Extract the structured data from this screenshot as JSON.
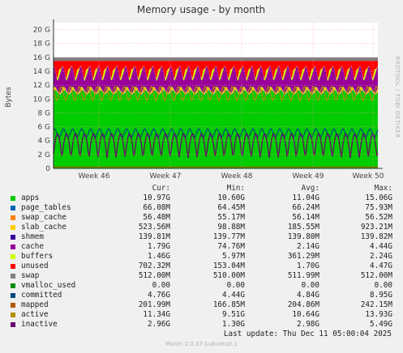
{
  "chart_data": {
    "type": "area",
    "title": "Memory usage - by month",
    "ylabel": "Bytes",
    "side_label": "RRDTOOL / TOBI OETIKER",
    "ylim": [
      0,
      21
    ],
    "y_ticks": [
      {
        "value": 0,
        "label": "0"
      },
      {
        "value": 2,
        "label": "2 G"
      },
      {
        "value": 4,
        "label": "4 G"
      },
      {
        "value": 6,
        "label": "6 G"
      },
      {
        "value": 8,
        "label": "8 G"
      },
      {
        "value": 10,
        "label": "10 G"
      },
      {
        "value": 12,
        "label": "12 G"
      },
      {
        "value": 14,
        "label": "14 G"
      },
      {
        "value": 16,
        "label": "16 G"
      },
      {
        "value": 18,
        "label": "18 G"
      },
      {
        "value": 20,
        "label": "20 G"
      }
    ],
    "x_ticks": [
      {
        "value": 0.14,
        "label": "Week 46"
      },
      {
        "value": 0.36,
        "label": "Week 47"
      },
      {
        "value": 0.58,
        "label": "Week 48"
      },
      {
        "value": 0.8,
        "label": "Week 49"
      },
      {
        "value": 0.985,
        "label": "Week 50"
      }
    ],
    "total_memory": 16,
    "periods": 36,
    "grid": true,
    "legend_placement": "bottom",
    "columns": [
      "Cur:",
      "Min:",
      "Avg:",
      "Max:"
    ],
    "series": [
      {
        "name": "apps",
        "color": "#00cc00",
        "cur": "10.97G",
        "min": "10.60G",
        "avg": "11.04G",
        "max": "15.06G",
        "base": 10.6,
        "amp": 0.6
      },
      {
        "name": "page_tables",
        "color": "#0066b3",
        "cur": "66.08M",
        "min": "64.45M",
        "avg": "66.24M",
        "max": "75.93M",
        "base": 0.066,
        "amp": 0.0
      },
      {
        "name": "swap_cache",
        "color": "#ff8000",
        "cur": "56.48M",
        "min": "55.17M",
        "avg": "56.14M",
        "max": "56.52M",
        "base": 0.056,
        "amp": 0.0
      },
      {
        "name": "slab_cache",
        "color": "#ffcc00",
        "cur": "523.56M",
        "min": "98.88M",
        "avg": "185.55M",
        "max": "923.21M",
        "base": 0.15,
        "amp": 0.4
      },
      {
        "name": "shmem",
        "color": "#330099",
        "cur": "139.81M",
        "min": "139.77M",
        "avg": "139.80M",
        "max": "139.82M",
        "base": 0.14,
        "amp": 0.0
      },
      {
        "name": "cache",
        "color": "#990099",
        "cur": "1.79G",
        "min": "74.76M",
        "avg": "2.14G",
        "max": "4.44G",
        "base": 1.2,
        "amp": 1.8
      },
      {
        "name": "buffers",
        "color": "#ccff00",
        "cur": "1.46G",
        "min": "5.97M",
        "avg": "361.29M",
        "max": "2.24G",
        "base": 0.05,
        "amp": 0.9
      },
      {
        "name": "unused",
        "color": "#ff0000",
        "cur": "702.32M",
        "min": "153.04M",
        "avg": "1.70G",
        "max": "4.47G",
        "base": 0,
        "amp": 0
      },
      {
        "name": "swap",
        "color": "#808080",
        "cur": "512.00M",
        "min": "510.00M",
        "avg": "511.99M",
        "max": "512.00M",
        "base": 0.5,
        "amp": 0.0
      },
      {
        "name": "vmalloc_used",
        "color": "#008f00",
        "cur": "0.00",
        "min": "0.00",
        "avg": "0.00",
        "max": "0.00"
      },
      {
        "name": "committed",
        "color": "#00487d",
        "cur": "4.76G",
        "min": "4.44G",
        "avg": "4.84G",
        "max": "8.95G",
        "base": 4.5,
        "amp": 1.2
      },
      {
        "name": "mapped",
        "color": "#b35a00",
        "cur": "201.99M",
        "min": "166.85M",
        "avg": "204.86M",
        "max": "242.15M",
        "base": 0.2,
        "amp": 0.0
      },
      {
        "name": "active",
        "color": "#b38f00",
        "cur": "11.34G",
        "min": "9.51G",
        "avg": "10.64G",
        "max": "13.93G",
        "base": 9.8,
        "amp": 2.0
      },
      {
        "name": "inactive",
        "color": "#6b006b",
        "cur": "2.96G",
        "min": "1.30G",
        "avg": "2.98G",
        "max": "5.49G",
        "base": 1.5,
        "amp": 3.5
      }
    ]
  },
  "footer": {
    "last_update": "Last update: Thu Dec 11 05:00:04 2025",
    "munin": "Munin 2.0.37-1ubuntu0.1"
  }
}
